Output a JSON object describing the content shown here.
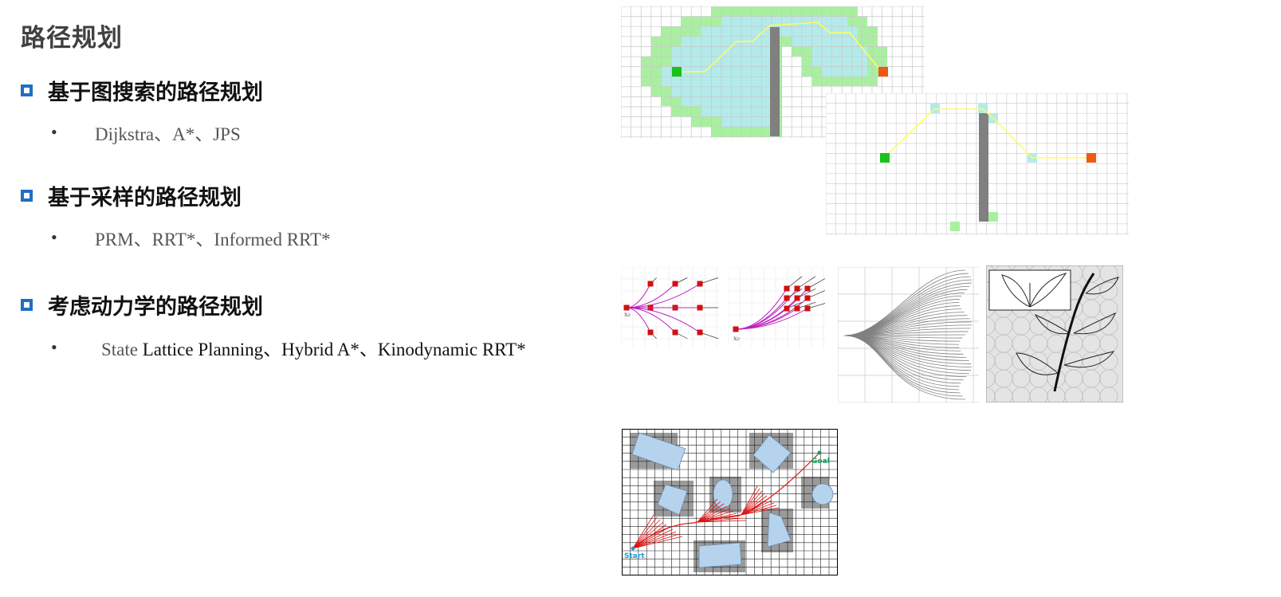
{
  "page": {
    "title": "路径规划"
  },
  "sections": [
    {
      "heading": "基于图搜索的路径规划",
      "items": "Dijkstra、A*、JPS"
    },
    {
      "heading": "基于采样的路径规划",
      "items": "PRM、RRT*、Informed RRT*"
    },
    {
      "heading": "考虑动力学的路径规划",
      "items_light": "State ",
      "items": "Lattice Planning、Hybrid A*、Kinodynamic RRT*"
    }
  ],
  "figures": {
    "lattice_left_label": "x₀",
    "lattice_right_label": "x₀",
    "rrt_start_label": "Start",
    "rrt_goal_label": "Goal"
  },
  "colors": {
    "bullet_box": "#1f6fc5",
    "grid_line": "#c8c8c8",
    "explored_outer": "#a8f0a0",
    "explored_inner": "#b4eaea",
    "obstacle": "#808080",
    "start": "#19c219",
    "goal": "#ee5a10",
    "path": "#ffff55",
    "lattice": "#c020c0",
    "rrt": "#e01010"
  }
}
